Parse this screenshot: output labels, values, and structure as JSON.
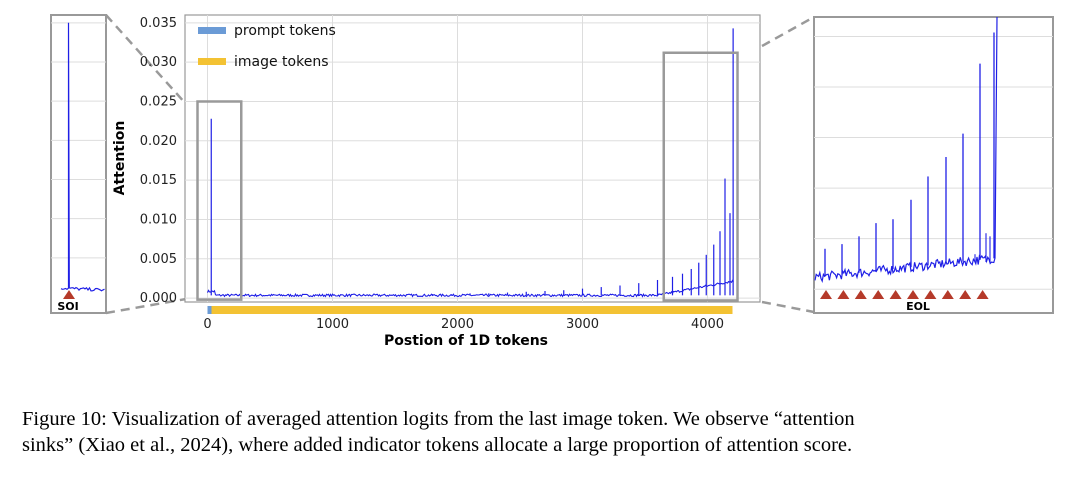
{
  "chart_data": [
    {
      "type": "line",
      "xlabel": "Postion of 1D tokens",
      "ylabel": "Attention",
      "xlim": [
        -180,
        4420
      ],
      "ylim": [
        -0.0005,
        0.036
      ],
      "xticks": [
        "0",
        "1000",
        "2000",
        "3000",
        "4000"
      ],
      "yticks": [
        "0.000",
        "0.005",
        "0.010",
        "0.015",
        "0.020",
        "0.025",
        "0.030",
        "0.035"
      ],
      "grid": true,
      "legend_position": "top-left",
      "legend": [
        "prompt tokens",
        "image tokens"
      ],
      "colors": {
        "line": "#1f1fe6",
        "prompt_tokens": "#6b9bd6",
        "image_tokens": "#f3c233",
        "marker": "#b53a2a",
        "zoom_box": "#9a9a9a"
      },
      "token_bars": [
        {
          "name": "prompt tokens",
          "x": [
            0,
            32
          ]
        },
        {
          "name": "image tokens",
          "x": [
            32,
            4200
          ]
        }
      ],
      "series": [
        {
          "name": "attention",
          "baseline": 0.00035,
          "spikes": [
            {
              "x": 30,
              "y": 0.0228
            },
            {
              "x": 1650,
              "y": 0.0004
            },
            {
              "x": 1800,
              "y": 0.0005
            },
            {
              "x": 1950,
              "y": 0.0005
            },
            {
              "x": 2100,
              "y": 0.0006
            },
            {
              "x": 2250,
              "y": 0.0006
            },
            {
              "x": 2400,
              "y": 0.0007
            },
            {
              "x": 2550,
              "y": 0.0008
            },
            {
              "x": 2700,
              "y": 0.0009
            },
            {
              "x": 2850,
              "y": 0.001
            },
            {
              "x": 3000,
              "y": 0.0012
            },
            {
              "x": 3150,
              "y": 0.0014
            },
            {
              "x": 3300,
              "y": 0.0016
            },
            {
              "x": 3450,
              "y": 0.0019
            },
            {
              "x": 3600,
              "y": 0.0023
            },
            {
              "x": 3720,
              "y": 0.0027
            },
            {
              "x": 3800,
              "y": 0.0031
            },
            {
              "x": 3870,
              "y": 0.0037
            },
            {
              "x": 3930,
              "y": 0.0045
            },
            {
              "x": 3990,
              "y": 0.0055
            },
            {
              "x": 4050,
              "y": 0.0068
            },
            {
              "x": 4100,
              "y": 0.0085
            },
            {
              "x": 4140,
              "y": 0.0152
            },
            {
              "x": 4180,
              "y": 0.0108
            },
            {
              "x": 4205,
              "y": 0.0343
            }
          ]
        }
      ]
    },
    {
      "type": "line",
      "panel": "left-zoom",
      "marker_label": "SOI",
      "baseline": 0.0012,
      "spike": {
        "x": 30,
        "y": 0.035
      }
    },
    {
      "type": "line",
      "panel": "right-zoom",
      "marker_label": "EOL",
      "eol_marker_count": 10,
      "spikes": [
        0.0062,
        0.0068,
        0.0078,
        0.0095,
        0.01,
        0.0125,
        0.0155,
        0.018,
        0.021,
        0.03,
        0.034
      ]
    }
  ],
  "caption": {
    "line1": "Figure 10: Visualization of averaged attention logits from the last image token. We observe “attention",
    "line2": "sinks” (Xiao et al., 2024), where added indicator tokens allocate a large proportion of attention score."
  }
}
